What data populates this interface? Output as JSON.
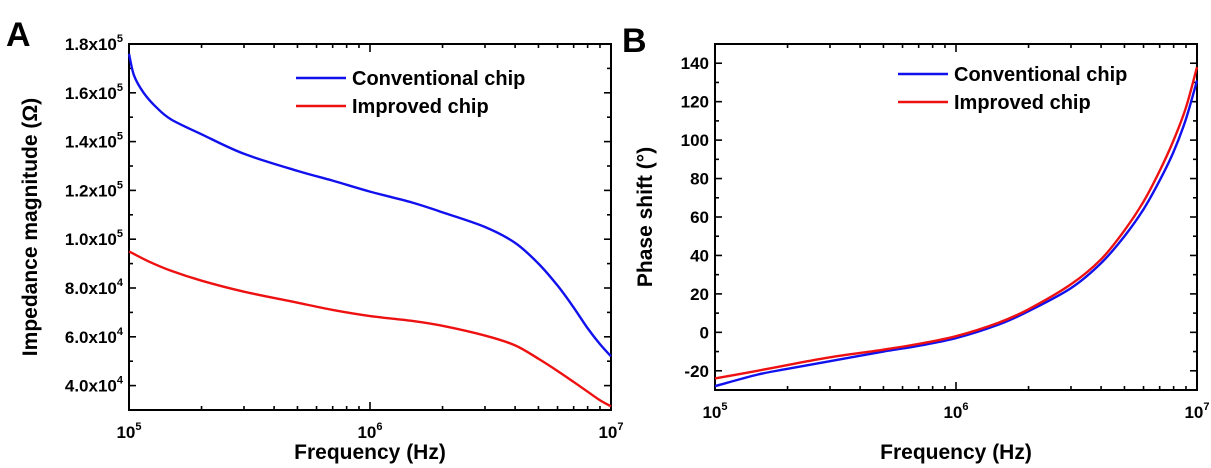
{
  "chart_data": [
    {
      "panel_label": "A",
      "type": "line",
      "xlabel": "Frequency (Hz)",
      "ylabel": "Impedance magnitude (Ω)",
      "x_scale": "log",
      "xlim": [
        100000,
        10000000
      ],
      "ylim": [
        30000,
        180000
      ],
      "x_ticks": [
        {
          "value": 100000,
          "base": "10",
          "exp": "5"
        },
        {
          "value": 1000000,
          "base": "10",
          "exp": "6"
        },
        {
          "value": 10000000,
          "base": "10",
          "exp": "7"
        }
      ],
      "y_ticks": [
        {
          "value": 40000,
          "mant": "4.0x10",
          "exp": "4"
        },
        {
          "value": 60000,
          "mant": "6.0x10",
          "exp": "4"
        },
        {
          "value": 80000,
          "mant": "8.0x10",
          "exp": "4"
        },
        {
          "value": 100000,
          "mant": "1.0x10",
          "exp": "5"
        },
        {
          "value": 120000,
          "mant": "1.2x10",
          "exp": "5"
        },
        {
          "value": 140000,
          "mant": "1.4x10",
          "exp": "5"
        },
        {
          "value": 160000,
          "mant": "1.6x10",
          "exp": "5"
        },
        {
          "value": 180000,
          "mant": "1.8x10",
          "exp": "5"
        }
      ],
      "legend_position": "top-right",
      "grid": false,
      "series": [
        {
          "name": "Conventional chip",
          "color": "#1111ee",
          "x": [
            100000,
            105000,
            115000,
            130000,
            150000,
            200000,
            300000,
            500000,
            700000,
            1000000,
            1500000,
            2000000,
            3000000,
            4000000,
            5000000,
            6000000,
            7000000,
            8000000,
            9000000,
            10000000
          ],
          "y": [
            176000,
            167000,
            160000,
            154000,
            149000,
            143000,
            135000,
            128000,
            124000,
            119500,
            115000,
            111000,
            105000,
            98500,
            90000,
            81000,
            72000,
            63500,
            57000,
            52000
          ]
        },
        {
          "name": "Improved chip",
          "color": "#ee1111",
          "x": [
            100000,
            120000,
            150000,
            200000,
            300000,
            500000,
            700000,
            1000000,
            1500000,
            2000000,
            3000000,
            4000000,
            5000000,
            6000000,
            7000000,
            8000000,
            9000000,
            10000000
          ],
          "y": [
            95000,
            91000,
            87000,
            83000,
            78500,
            74000,
            71000,
            68500,
            66500,
            64500,
            60500,
            56500,
            51000,
            46000,
            41500,
            37500,
            34000,
            31500
          ]
        }
      ]
    },
    {
      "panel_label": "B",
      "type": "line",
      "xlabel": "Frequency (Hz)",
      "ylabel": "Phase shift (°)",
      "x_scale": "log",
      "xlim": [
        100000,
        10000000
      ],
      "ylim": [
        -30,
        150
      ],
      "x_ticks": [
        {
          "value": 100000,
          "base": "10",
          "exp": "5"
        },
        {
          "value": 1000000,
          "base": "10",
          "exp": "6"
        },
        {
          "value": 10000000,
          "base": "10",
          "exp": "7"
        }
      ],
      "y_ticks": [
        {
          "value": -20,
          "label": "-20"
        },
        {
          "value": 0,
          "label": "0"
        },
        {
          "value": 20,
          "label": "20"
        },
        {
          "value": 40,
          "label": "40"
        },
        {
          "value": 60,
          "label": "60"
        },
        {
          "value": 80,
          "label": "80"
        },
        {
          "value": 100,
          "label": "100"
        },
        {
          "value": 120,
          "label": "120"
        },
        {
          "value": 140,
          "label": "140"
        }
      ],
      "legend_position": "top-right",
      "grid": false,
      "series": [
        {
          "name": "Conventional chip",
          "color": "#1111ee",
          "x": [
            100000,
            150000,
            200000,
            300000,
            500000,
            700000,
            1000000,
            1500000,
            2000000,
            3000000,
            4000000,
            5000000,
            6000000,
            7000000,
            8000000,
            9000000,
            10000000
          ],
          "y": [
            -28,
            -22,
            -19,
            -15,
            -10,
            -7,
            -3,
            4,
            11,
            23,
            36,
            50,
            64,
            79,
            94,
            111,
            131
          ]
        },
        {
          "name": "Improved chip",
          "color": "#ee1111",
          "x": [
            100000,
            150000,
            200000,
            300000,
            500000,
            700000,
            1000000,
            1500000,
            2000000,
            3000000,
            4000000,
            5000000,
            6000000,
            7000000,
            8000000,
            9000000,
            10000000
          ],
          "y": [
            -24,
            -20,
            -17,
            -13,
            -9,
            -6,
            -2,
            5,
            12,
            25,
            38,
            53,
            68,
            84,
            100,
            117,
            138
          ]
        }
      ]
    }
  ]
}
